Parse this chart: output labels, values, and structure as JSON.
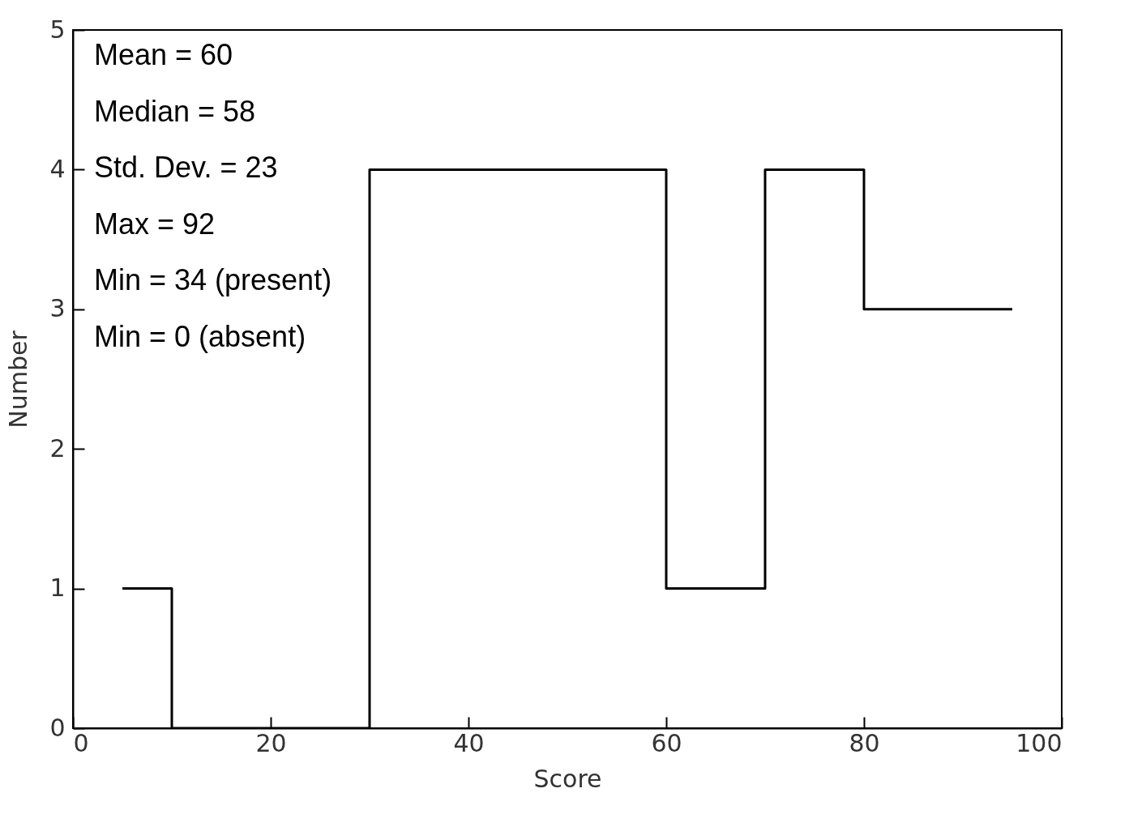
{
  "chart_data": {
    "type": "histogram",
    "xlabel": "Score",
    "ylabel": "Number",
    "bins": [
      5,
      10,
      30,
      60,
      70,
      80,
      95
    ],
    "values": [
      1,
      0,
      4,
      1,
      4,
      3
    ],
    "color": "#000000",
    "xlim": [
      0,
      100
    ],
    "xticks": [
      0,
      20,
      40,
      60,
      80,
      100
    ],
    "ylim": [
      0,
      5
    ],
    "yticks": [
      0,
      1,
      2,
      3,
      4,
      5
    ],
    "grid": false,
    "annotations": [
      "Mean = 60",
      "Median = 58",
      "Std. Dev. = 23",
      "Max = 92",
      "Min = 34 (present)",
      "Min = 0 (absent)"
    ]
  }
}
